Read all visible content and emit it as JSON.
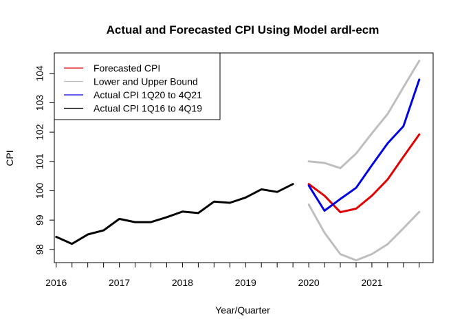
{
  "chart_data": {
    "type": "line",
    "title": "Actual and Forecasted CPI Using Model ardl-ecm",
    "xlabel": "Year/Quarter",
    "ylabel": "CPI",
    "xlim": [
      2015.97,
      2021.97
    ],
    "ylim": [
      97.55,
      104.7
    ],
    "xticks": [
      2016,
      2017,
      2018,
      2019,
      2020,
      2021
    ],
    "yticks": [
      98,
      99,
      100,
      101,
      102,
      103,
      104
    ],
    "grid": false,
    "legend_position": "top-left",
    "series": [
      {
        "name": "Forecasted CPI",
        "color": "#e00000",
        "x": [
          2020.0,
          2020.25,
          2020.5,
          2020.75,
          2021.0,
          2021.25,
          2021.5,
          2021.75
        ],
        "values": [
          100.23,
          99.83,
          99.27,
          99.39,
          99.83,
          100.39,
          101.16,
          101.92
        ]
      },
      {
        "name": "Lower and Upper Bound",
        "color": "#bebebe",
        "x": [
          2020.0,
          2020.25,
          2020.5,
          2020.75,
          2021.0,
          2021.25,
          2021.5,
          2021.75
        ],
        "values": [
          101.0,
          100.95,
          100.77,
          101.27,
          101.96,
          102.62,
          103.53,
          104.43
        ],
        "lower": [
          99.53,
          98.57,
          97.84,
          97.63,
          97.84,
          98.18,
          98.72,
          99.28
        ]
      },
      {
        "name": "Actual CPI 1Q20 to 4Q21",
        "color": "#0000e0",
        "x": [
          2020.0,
          2020.25,
          2020.5,
          2020.75,
          2021.0,
          2021.25,
          2021.5,
          2021.75
        ],
        "values": [
          100.18,
          99.32,
          99.72,
          100.1,
          100.87,
          101.62,
          102.2,
          103.79
        ]
      },
      {
        "name": "Actual CPI 1Q16 to 4Q19",
        "color": "#000000",
        "x": [
          2016.0,
          2016.25,
          2016.5,
          2016.75,
          2017.0,
          2017.25,
          2017.5,
          2017.75,
          2018.0,
          2018.25,
          2018.5,
          2018.75,
          2019.0,
          2019.25,
          2019.5,
          2019.75
        ],
        "values": [
          98.43,
          98.19,
          98.51,
          98.65,
          99.04,
          98.93,
          98.93,
          99.1,
          99.29,
          99.24,
          99.63,
          99.59,
          99.77,
          100.05,
          99.96,
          100.23
        ]
      }
    ]
  }
}
